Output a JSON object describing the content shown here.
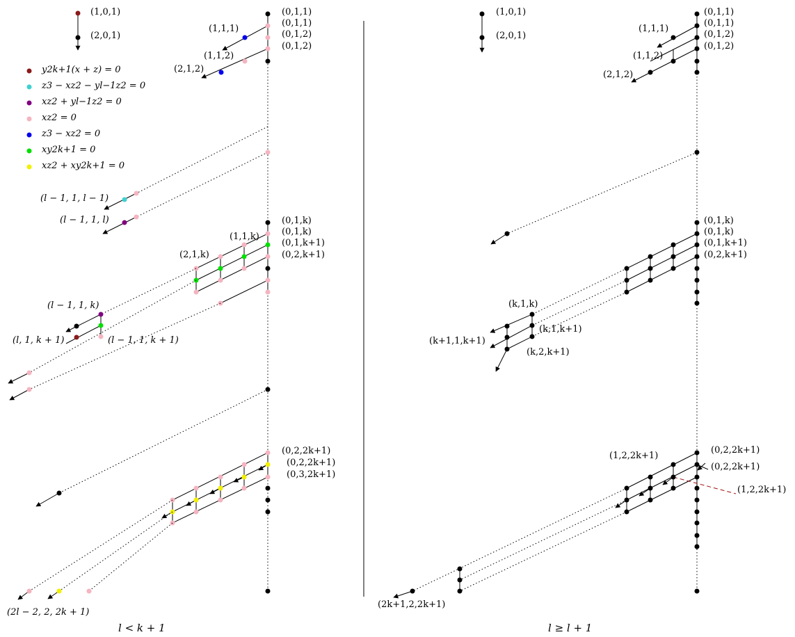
{
  "colors": {
    "node": "#000000",
    "dark_red": "#8b1a1a",
    "cyan": "#40d0d0",
    "purple": "#800080",
    "pink": "#f4b4c0",
    "blue": "#0000ee",
    "green": "#00e000",
    "yellow": "#f0f000",
    "dash_red": "#a01010"
  },
  "legend": {
    "top_label_1": "(1,0,1)",
    "top_label_2": "(2,0,1)",
    "items": [
      {
        "color_key": "dark_red",
        "text": "y^{2k+1}(x+z) = 0",
        "plain": "y2k+1(x + z) = 0"
      },
      {
        "color_key": "cyan",
        "text": "z^3 - xz^2 - y^{l-1}z^2 = 0",
        "plain": "z3 − xz2 − yl−1z2 = 0"
      },
      {
        "color_key": "purple",
        "text": "xz^2 + y^{l-1}z^2 = 0",
        "plain": "xz2 + yl−1z2 = 0"
      },
      {
        "color_key": "pink",
        "text": "xz^2 = 0",
        "plain": "xz2 = 0"
      },
      {
        "color_key": "blue",
        "text": "z^3 - xz^2 = 0",
        "plain": "z3 − xz2 = 0"
      },
      {
        "color_key": "green",
        "text": "xy^{2k+1} = 0",
        "plain": "xy2k+1 = 0"
      },
      {
        "color_key": "yellow",
        "text": "xz^2 + xy^{2k+1} = 0",
        "plain": "xz2 + xy2k+1 = 0"
      }
    ]
  },
  "left": {
    "caption": "l < k + 1",
    "labels": {
      "a011": "(0,1,1)",
      "b011": "(0,1,1)",
      "c012": "(0,1,2)",
      "d012": "(0,1,2)",
      "e111": "(1,1,1)",
      "f112": "(1,1,2)",
      "g212": "(2,1,2)",
      "h_l11l1": "(l − 1, 1, l − 1)",
      "i_l11l": "(l − 1, 1, l)",
      "j01k": "(0,1,k)",
      "k01k": "(0,1,k)",
      "l01k1": "(0,1,k+1)",
      "m02k1": "(0,2,k+1)",
      "n11k": "(1,1,k)",
      "o21k": "(2,1,k)",
      "p_l11k": "(l − 1, 1, k)",
      "q_l1k1": "(l, 1, k + 1)",
      "r_l11k1": "(l − 1, 1, k + 1)",
      "s022k1": "(0,2,2k+1)",
      "t022k1": "(0,2,2k+1)",
      "u032k1": "(0,3,2k+1)",
      "v2l22k1": "(2l − 2, 2, 2k + 1)"
    }
  },
  "right": {
    "caption": "l ≥ l + 1",
    "labels": {
      "a101": "(1,0,1)",
      "b201": "(2,0,1)",
      "c011": "(0,1,1)",
      "d011": "(0,1,1)",
      "e012": "(0,1,2)",
      "f012": "(0,1,2)",
      "g111": "(1,1,1)",
      "h112": "(1,1,2)",
      "i212": "(2,1,2)",
      "j01k": "(0,1,k)",
      "k01k": "(0,1,k)",
      "l01k1": "(0,1,k+1)",
      "m02k1": "(0,2,k+1)",
      "n_k1k": "(k,1,k)",
      "o_k1k1": "(k,1,k+1)",
      "p_k11k1": "(k+1,1,k+1)",
      "q_k2k1": "(k,2,k+1)",
      "r122k1": "(1,2,2k+1)",
      "s022k1": "(0,2,2k+1)",
      "t022k1": "(0,2,2k+1)",
      "u122k1": "(1,2,2k+1)",
      "v2k122k1": "(2k+1,2,2k+1)"
    }
  }
}
